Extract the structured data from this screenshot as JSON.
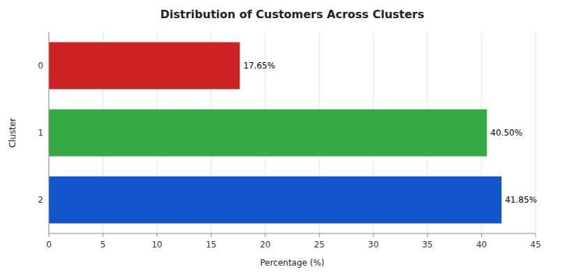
{
  "chart_data": {
    "type": "bar",
    "orientation": "horizontal",
    "title": "Distribution of Customers Across Clusters",
    "xlabel": "Percentage (%)",
    "ylabel": "Cluster",
    "categories": [
      "2",
      "1",
      "0"
    ],
    "values": [
      41.85,
      40.5,
      17.65
    ],
    "value_labels": [
      "41.85%",
      "40.50%",
      "17.65%"
    ],
    "data_labels": true,
    "colors": [
      "#1155cc",
      "#33aa44",
      "#cc2222"
    ],
    "xlim": [
      0,
      45
    ],
    "xticks": [
      0,
      5,
      10,
      15,
      20,
      25,
      30,
      35,
      40,
      45
    ],
    "grid": true
  }
}
